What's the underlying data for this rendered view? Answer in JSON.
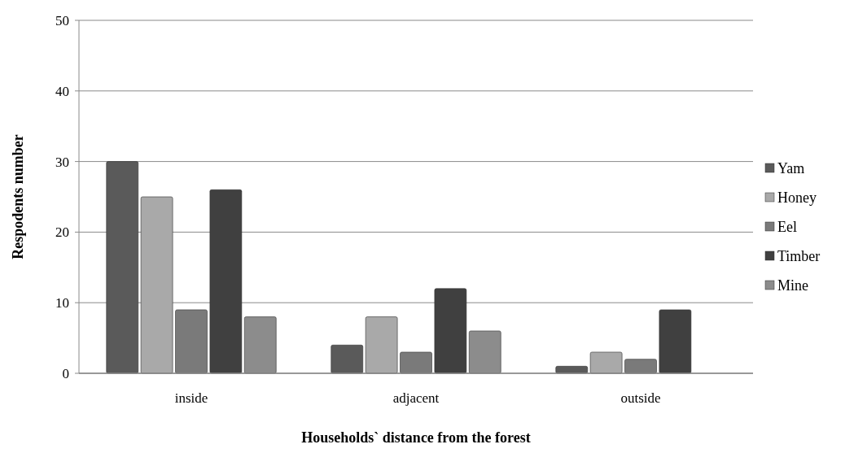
{
  "chart_data": {
    "type": "bar",
    "xlabel": "Households` distance from the forest",
    "ylabel": "Respodents number",
    "categories": [
      "inside",
      "adjacent",
      "outside"
    ],
    "series": [
      {
        "name": "Yam",
        "color": "#5a5a5a",
        "values": [
          30,
          4,
          1
        ]
      },
      {
        "name": "Honey",
        "color": "#a9a9a9",
        "values": [
          25,
          8,
          3
        ]
      },
      {
        "name": "Eel",
        "color": "#7a7a7a",
        "values": [
          9,
          3,
          2
        ]
      },
      {
        "name": "Timber",
        "color": "#404040",
        "values": [
          26,
          12,
          9
        ]
      },
      {
        "name": "Mine",
        "color": "#8c8c8c",
        "values": [
          8,
          6,
          0
        ]
      }
    ],
    "ylim": [
      0,
      50
    ],
    "yticks": [
      0,
      10,
      20,
      30,
      40,
      50
    ],
    "grid": "y",
    "legend": "right"
  }
}
